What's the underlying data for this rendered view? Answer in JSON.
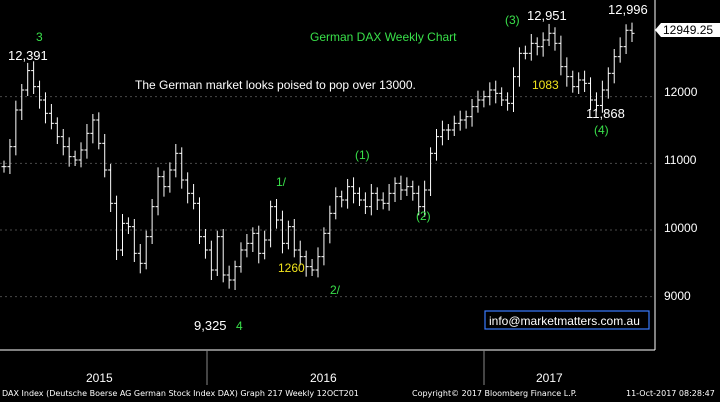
{
  "colors": {
    "background": "#000000",
    "bars": "#ffffff",
    "grid": "#4a4a4a",
    "green_label": "#39e04a",
    "yellow_label": "#f2e41c",
    "price_box": "#ffffff",
    "email_box_border": "#3a7cff"
  },
  "chart_data": {
    "type": "ohlc",
    "title": "German DAX Weekly Chart",
    "subtitle": "The German market looks poised to pop over 13000.",
    "y_ticks": [
      9000,
      10000,
      11000,
      12000
    ],
    "y_tick_labels": [
      "9000",
      "10000",
      "11000",
      "12000"
    ],
    "ylim": [
      8200,
      13450
    ],
    "x_tick_labels": [
      "2015",
      "2016",
      "2017"
    ],
    "last_price_label": "12949.25",
    "weekly_closes": [
      10950,
      11250,
      11800,
      12100,
      12391,
      12150,
      11950,
      11750,
      11600,
      11400,
      11250,
      11100,
      11050,
      11200,
      11450,
      11650,
      11300,
      10900,
      10400,
      9700,
      10100,
      10050,
      9650,
      9500,
      9900,
      10350,
      10800,
      10650,
      10900,
      11150,
      10750,
      10550,
      10400,
      9900,
      9700,
      9400,
      9900,
      9325,
      9250,
      9450,
      9700,
      9800,
      9950,
      9650,
      9850,
      10350,
      10150,
      9800,
      10050,
      9700,
      9600,
      9450,
      9400,
      9600,
      9950,
      10250,
      10500,
      10450,
      10650,
      10550,
      10450,
      10350,
      10550,
      10450,
      10400,
      10550,
      10700,
      10600,
      10650,
      10550,
      10350,
      10600,
      11150,
      11400,
      11500,
      11500,
      11600,
      11650,
      11700,
      11850,
      11950,
      12000,
      12100,
      12050,
      11950,
      11900,
      12300,
      12650,
      12650,
      12800,
      12750,
      12850,
      12951,
      12800,
      12450,
      12300,
      12150,
      12250,
      12200,
      11950,
      11868,
      12100,
      12350,
      12600,
      12750,
      12996,
      12950
    ],
    "annotations": [
      {
        "text": "12,391",
        "value": 12391,
        "color": "white"
      },
      {
        "text": "3",
        "color": "green"
      },
      {
        "text": "9,325",
        "value": 9325,
        "color": "white"
      },
      {
        "text": "4",
        "color": "green"
      },
      {
        "text": "1/",
        "color": "green"
      },
      {
        "text": "1260",
        "color": "yellow"
      },
      {
        "text": "2/",
        "color": "green"
      },
      {
        "text": "(1)",
        "color": "green"
      },
      {
        "text": "(2)",
        "color": "green"
      },
      {
        "text": "(3)",
        "color": "green"
      },
      {
        "text": "12,951",
        "value": 12951,
        "color": "white"
      },
      {
        "text": "1083",
        "color": "yellow"
      },
      {
        "text": "11,868",
        "value": 11868,
        "color": "white"
      },
      {
        "text": "(4)",
        "color": "green"
      },
      {
        "text": "12,996",
        "value": 12996,
        "color": "white"
      }
    ]
  },
  "email": "info@marketmatters.com.au",
  "footer": {
    "source": "DAX Index (Deutsche Boerse AG German Stock Index DAX) Graph 217  Weekly 12OCT201",
    "copyright": "Copyright© 2017 Bloomberg Finance L.P.",
    "timestamp": "11-Oct-2017 08:28:47"
  }
}
